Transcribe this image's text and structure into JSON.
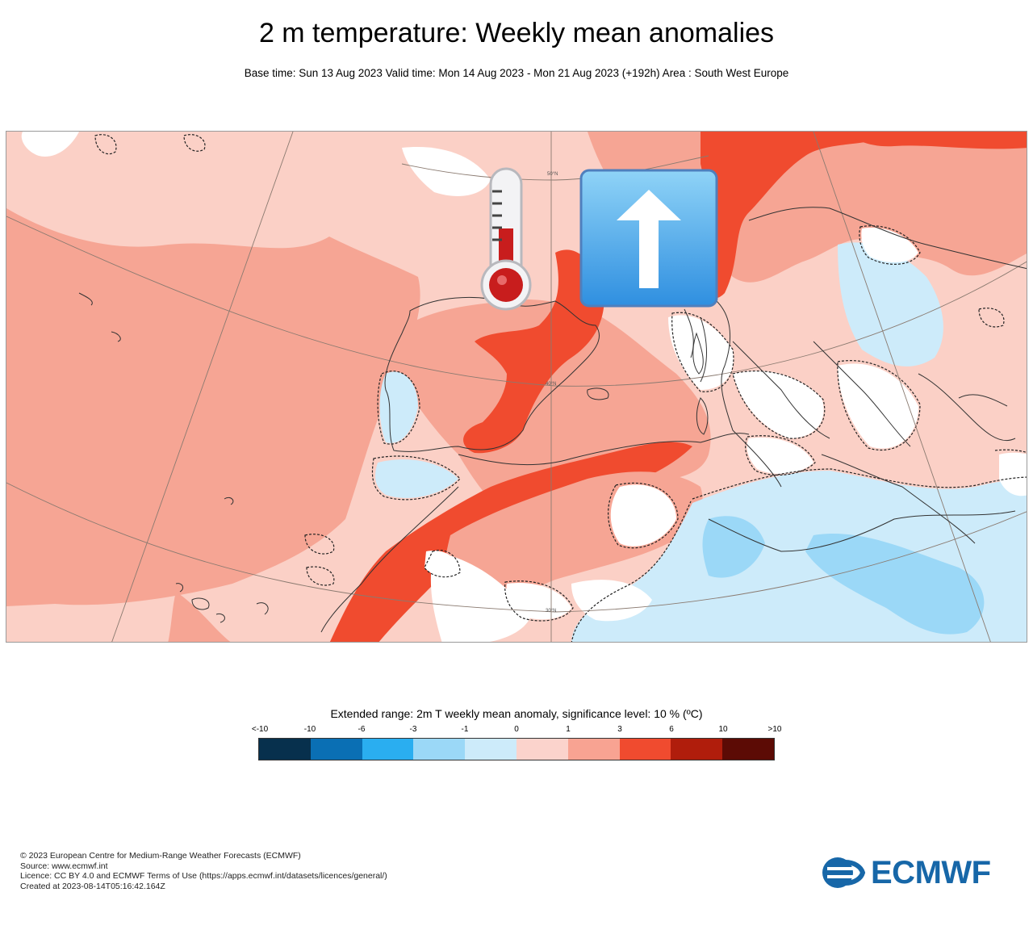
{
  "header": {
    "title": "2 m temperature: Weekly mean anomalies",
    "subtitle": "Base time: Sun 13 Aug 2023 Valid time: Mon 14 Aug 2023 - Mon 21 Aug 2023 (+192h) Area : South West Europe"
  },
  "map": {
    "region": "South West Europe",
    "latitude_labels": [
      "50°N",
      "40°N",
      "30°N"
    ],
    "icons": [
      "thermometer-icon",
      "up-arrow-icon"
    ]
  },
  "legend": {
    "title": "Extended range: 2m T weekly mean anomaly, significance level: 10 % (ºC)",
    "ticks": [
      "<-10",
      "-10",
      "-6",
      "-3",
      "-1",
      "0",
      "1",
      "3",
      "6",
      "10",
      ">10"
    ],
    "colors": [
      "#07304d",
      "#0a6fb4",
      "#2aaef0",
      "#9bd8f7",
      "#cdebfa",
      "#fbd3cc",
      "#f8a392",
      "#f04b2f",
      "#b01d0c",
      "#5c0b05"
    ]
  },
  "footer": {
    "copyright": "© 2023 European Centre for Medium-Range Weather Forecasts (ECMWF)",
    "source": "Source: www.ecmwf.int",
    "licence": "Licence: CC BY 4.0 and ECMWF Terms of Use (https://apps.ecmwf.int/datasets/licences/general/)",
    "created": "Created at 2023-08-14T05:16:42.164Z"
  },
  "logo": {
    "text": "ECMWF",
    "color": "#1767a8"
  }
}
